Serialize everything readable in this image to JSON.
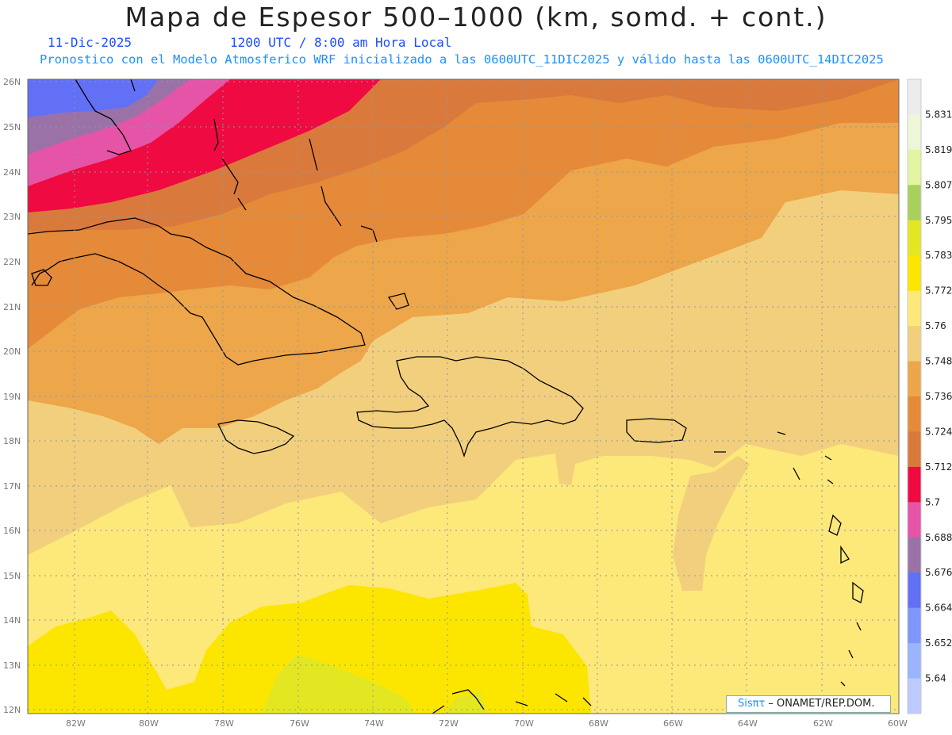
{
  "header": {
    "title": "Mapa de Espesor 500–1000 (km, somd. + cont.)",
    "date": "11-Dic-2025",
    "time": "1200 UTC / 8:00 am Hora Local",
    "model_info": "Pronostico con el Modelo Atmosferico WRF inicializado a las 0600UTC_11DIC2025 y válido hasta las  0600UTC_14DIC2025"
  },
  "map": {
    "lat_labels": [
      "26N",
      "25N",
      "24N",
      "23N",
      "22N",
      "21N",
      "20N",
      "19N",
      "18N",
      "17N",
      "16N",
      "15N",
      "14N",
      "13N",
      "12N"
    ],
    "lon_labels": [
      "82W",
      "80W",
      "78W",
      "76W",
      "74W",
      "72W",
      "70W",
      "68W",
      "66W",
      "64W",
      "62W",
      "60W"
    ],
    "lat_values": [
      26,
      25,
      24,
      23,
      22,
      21,
      20,
      19,
      18,
      17,
      16,
      15,
      14,
      13,
      12
    ],
    "lon_values": [
      -82,
      -80,
      -78,
      -76,
      -74,
      -72,
      -70,
      -68,
      -66,
      -64,
      -62,
      -60
    ]
  },
  "colorbar": {
    "labels": [
      "5.831",
      "5.819",
      "5.807",
      "5.795",
      "5.783",
      "5.772",
      "5.76",
      "5.748",
      "5.736",
      "5.724",
      "5.712",
      "5.7",
      "5.688",
      "5.676",
      "5.664",
      "5.652",
      "5.64"
    ],
    "colors": [
      "#ececec",
      "#eef6d8",
      "#e3f5a0",
      "#a9cf5c",
      "#e3e722",
      "#fce600",
      "#fde87a",
      "#f2cf7c",
      "#eda64a",
      "#e58a38",
      "#d97a3c",
      "#ef0a42",
      "#e554a6",
      "#9a72a8",
      "#6270f5",
      "#7f96fb",
      "#9ab4fd",
      "#bccafe"
    ]
  },
  "credit": {
    "brand": "Sisπτ",
    "text": " –  ONAMET/REP.DOM."
  }
}
